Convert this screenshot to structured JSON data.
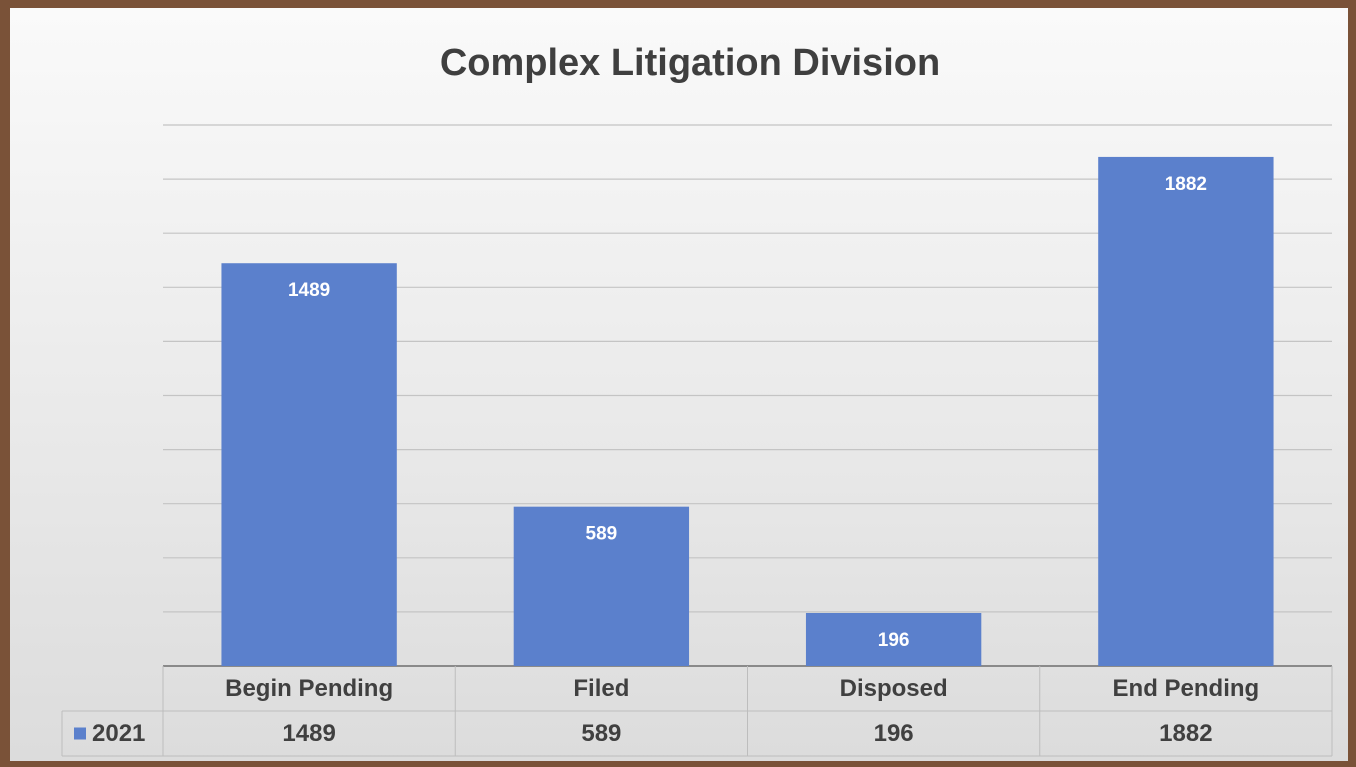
{
  "chart_data": {
    "type": "bar",
    "title": "Complex Litigation Division",
    "categories": [
      "Begin Pending",
      "Filed",
      "Disposed",
      "End Pending"
    ],
    "series": [
      {
        "name": "2021",
        "color": "#5b80cc",
        "values": [
          1489,
          589,
          196,
          1882
        ]
      }
    ],
    "ylim": [
      0,
      2000
    ],
    "yticks": [
      0,
      200,
      400,
      600,
      800,
      1000,
      1200,
      1400,
      1600,
      1800,
      2000
    ],
    "grid": true,
    "legend": "bottom-left"
  }
}
